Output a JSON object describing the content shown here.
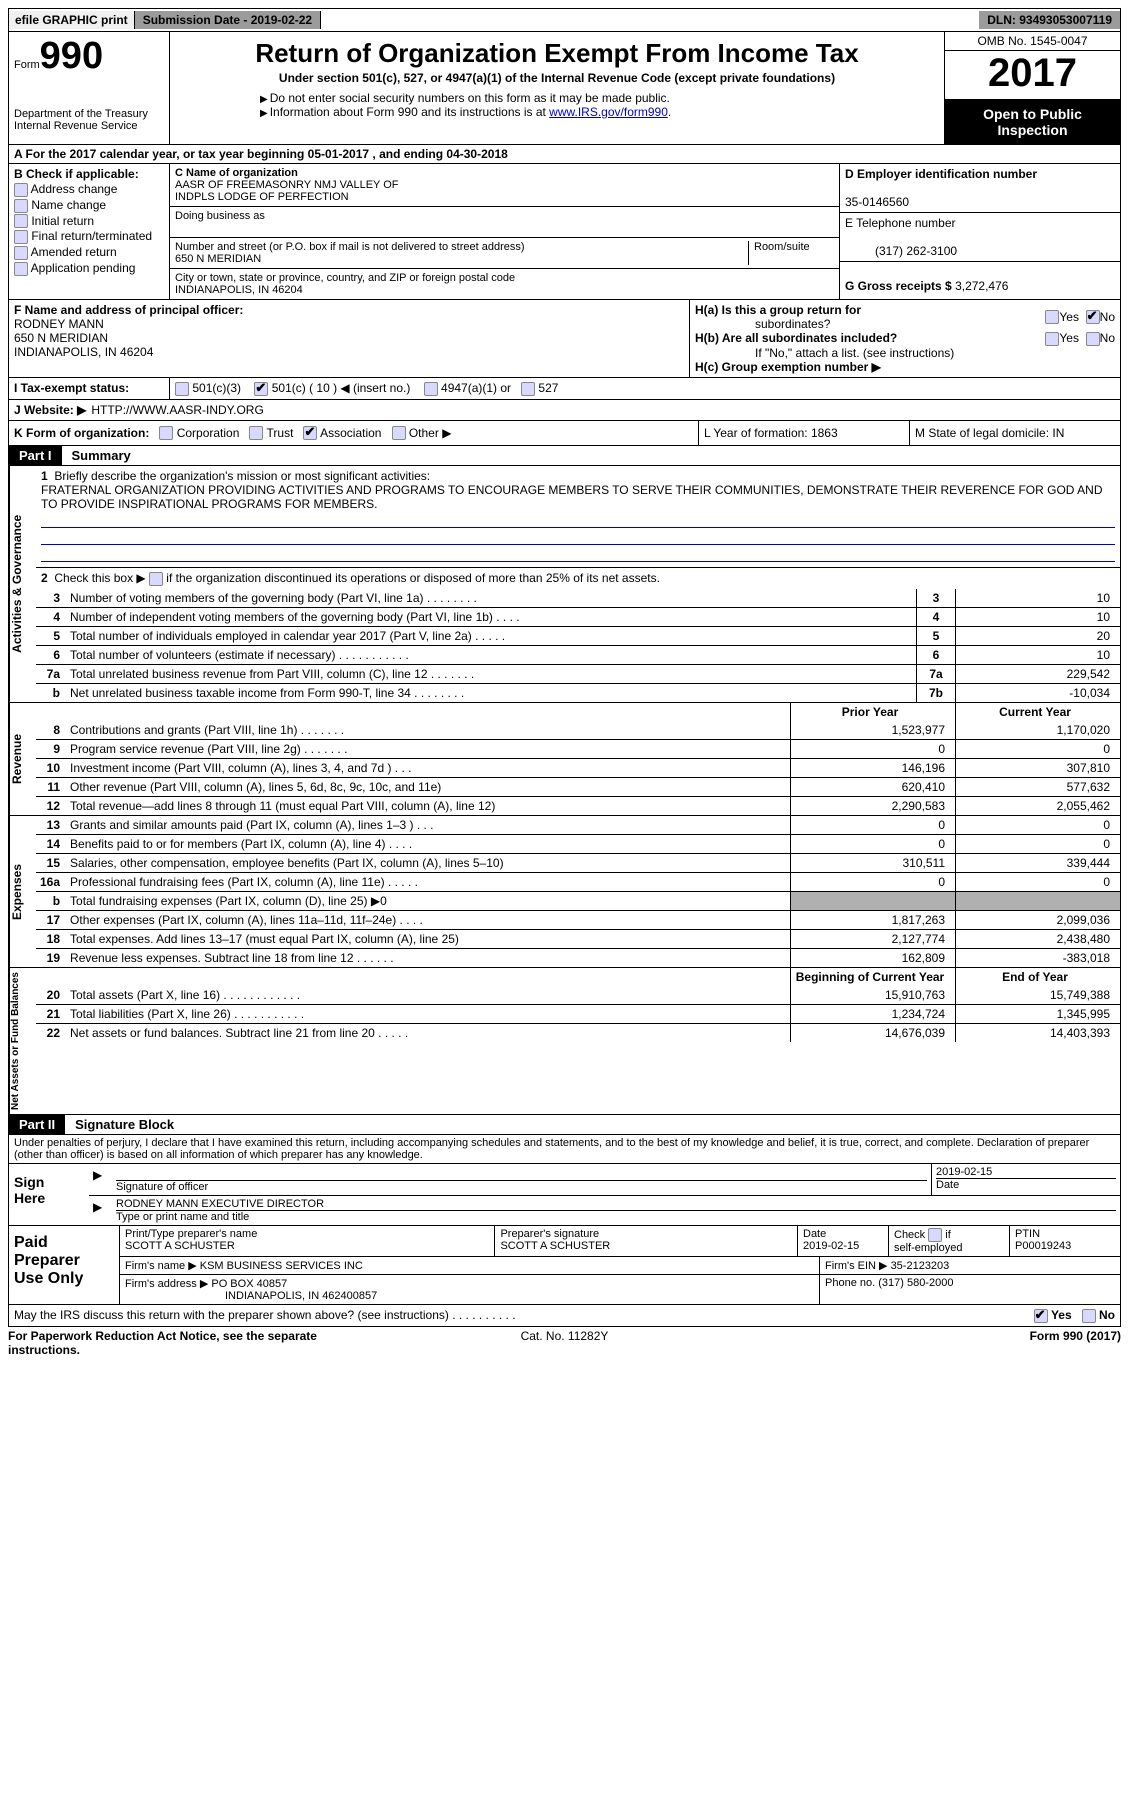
{
  "topbar": {
    "efile": "efile GRAPHIC print",
    "subdate_label": "Submission Date - ",
    "subdate": "2019-02-22",
    "dln_label": "DLN: ",
    "dln": "93493053007119"
  },
  "header": {
    "form_word": "Form",
    "form_num": "990",
    "dept1": "Department of the Treasury",
    "dept2": "Internal Revenue Service",
    "title": "Return of Organization Exempt From Income Tax",
    "subtitle": "Under section 501(c), 527, or 4947(a)(1) of the Internal Revenue Code (except private foundations)",
    "note1": "Do not enter social security numbers on this form as it may be made public.",
    "note2_pre": "Information about Form 990 and its instructions is at ",
    "note2_link": "www.IRS.gov/form990",
    "omb": "OMB No. 1545-0047",
    "year": "2017",
    "open1": "Open to Public",
    "open2": "Inspection"
  },
  "rowA": {
    "text_pre": "A   For the 2017 calendar year, or tax year beginning ",
    "begin": "05-01-2017",
    "mid": "   , and ending ",
    "end": "04-30-2018"
  },
  "B": {
    "label": "B Check if applicable:",
    "opts": [
      "Address change",
      "Name change",
      "Initial return",
      "Final return/terminated",
      "Amended return",
      "Application pending"
    ]
  },
  "C": {
    "name_lbl": "C Name of organization",
    "name1": "AASR OF FREEMASONRY NMJ VALLEY OF",
    "name2": "INDPLS LODGE OF PERFECTION",
    "dba_lbl": "Doing business as",
    "addr_lbl": "Number and street (or P.O. box if mail is not delivered to street address)",
    "room_lbl": "Room/suite",
    "addr": "650 N MERIDIAN",
    "city_lbl": "City or town, state or province, country, and ZIP or foreign postal code",
    "city": "INDIANAPOLIS, IN  46204"
  },
  "D": {
    "ein_lbl": "D Employer identification number",
    "ein": "35-0146560",
    "phone_lbl": "E Telephone number",
    "phone": "(317) 262-3100",
    "gross_lbl": "G Gross receipts $ ",
    "gross": "3,272,476"
  },
  "F": {
    "lbl": "F Name and address of principal officer:",
    "name": "RODNEY MANN",
    "addr1": "650 N MERIDIAN",
    "addr2": "INDIANAPOLIS, IN  46204"
  },
  "H": {
    "a": "H(a)  Is this a group return for",
    "a2": "subordinates?",
    "b": "H(b)  Are all subordinates included?",
    "b2": "If \"No,\" attach a list. (see instructions)",
    "c": "H(c)  Group exemption number ▶",
    "yes": "Yes",
    "no": "No"
  },
  "I": {
    "lbl": "I   Tax-exempt status:",
    "c3": "501(c)(3)",
    "c": "501(c) ( 10 ) ◀ (insert no.)",
    "a1": "4947(a)(1) or",
    "s527": "527"
  },
  "J": {
    "lbl": "J   Website: ▶",
    "val": "HTTP://WWW.AASR-INDY.ORG"
  },
  "K": {
    "lbl": "K Form of organization:",
    "corp": "Corporation",
    "trust": "Trust",
    "assoc": "Association",
    "other": "Other ▶",
    "L": "L Year of formation: 1863",
    "M": "M State of legal domicile: IN"
  },
  "part1": {
    "num": "Part I",
    "title": "Summary"
  },
  "vlabels": {
    "gov": "Activities & Governance",
    "rev": "Revenue",
    "exp": "Expenses",
    "net": "Net Assets or\nFund Balances"
  },
  "summary": {
    "l1": "Briefly describe the organization's mission or most significant activities:",
    "mission": "FRATERNAL ORGANIZATION PROVIDING ACTIVITIES AND PROGRAMS TO ENCOURAGE MEMBERS TO SERVE THEIR COMMUNITIES, DEMONSTRATE THEIR REVERENCE FOR GOD AND TO PROVIDE INSPIRATIONAL PROGRAMS FOR MEMBERS.",
    "l2": "Check this box ▶         if the organization discontinued its operations or disposed of more than 25% of its net assets.",
    "lines": [
      {
        "n": "3",
        "t": "Number of voting members of the governing body (Part VI, line 1a)  .    .    .    .    .    .    .    .",
        "b": "3",
        "v": "10"
      },
      {
        "n": "4",
        "t": "Number of independent voting members of the governing body (Part VI, line 1b)  .    .    .    .",
        "b": "4",
        "v": "10"
      },
      {
        "n": "5",
        "t": "Total number of individuals employed in calendar year 2017 (Part V, line 2a)  .    .    .    .    .",
        "b": "5",
        "v": "20"
      },
      {
        "n": "6",
        "t": "Total number of volunteers (estimate if necessary)  .    .    .    .    .    .    .    .    .    .    .",
        "b": "6",
        "v": "10"
      },
      {
        "n": "7a",
        "t": "Total unrelated business revenue from Part VIII, column (C), line 12  .    .    .    .    .    .    .",
        "b": "7a",
        "v": "229,542"
      },
      {
        "n": "b",
        "t": "Net unrelated business taxable income from Form 990-T, line 34  .    .    .    .    .    .    .    .",
        "b": "7b",
        "v": "-10,034"
      }
    ],
    "col_prior": "Prior Year",
    "col_curr": "Current Year",
    "rev": [
      {
        "n": "8",
        "t": "Contributions and grants (Part VIII, line 1h)  .    .    .    .    .    .    .",
        "p": "1,523,977",
        "c": "1,170,020"
      },
      {
        "n": "9",
        "t": "Program service revenue (Part VIII, line 2g)  .    .    .    .    .    .    .",
        "p": "0",
        "c": "0"
      },
      {
        "n": "10",
        "t": "Investment income (Part VIII, column (A), lines 3, 4, and 7d )  .    .    .",
        "p": "146,196",
        "c": "307,810"
      },
      {
        "n": "11",
        "t": "Other revenue (Part VIII, column (A), lines 5, 6d, 8c, 9c, 10c, and 11e)",
        "p": "620,410",
        "c": "577,632"
      },
      {
        "n": "12",
        "t": "Total revenue—add lines 8 through 11 (must equal Part VIII, column (A), line 12)",
        "p": "2,290,583",
        "c": "2,055,462"
      }
    ],
    "exp": [
      {
        "n": "13",
        "t": "Grants and similar amounts paid (Part IX, column (A), lines 1–3 )  .    .    .",
        "p": "0",
        "c": "0"
      },
      {
        "n": "14",
        "t": "Benefits paid to or for members (Part IX, column (A), line 4)  .    .    .    .",
        "p": "0",
        "c": "0"
      },
      {
        "n": "15",
        "t": "Salaries, other compensation, employee benefits (Part IX, column (A), lines 5–10)",
        "p": "310,511",
        "c": "339,444"
      },
      {
        "n": "16a",
        "t": "Professional fundraising fees (Part IX, column (A), line 11e)  .    .    .    .    .",
        "p": "0",
        "c": "0"
      },
      {
        "n": "b",
        "t": "Total fundraising expenses (Part IX, column (D), line 25) ▶0",
        "p": "",
        "c": "",
        "shade": true
      },
      {
        "n": "17",
        "t": "Other expenses (Part IX, column (A), lines 11a–11d, 11f–24e)  .    .    .    .",
        "p": "1,817,263",
        "c": "2,099,036"
      },
      {
        "n": "18",
        "t": "Total expenses. Add lines 13–17 (must equal Part IX, column (A), line 25)",
        "p": "2,127,774",
        "c": "2,438,480"
      },
      {
        "n": "19",
        "t": "Revenue less expenses. Subtract line 18 from line 12  .    .    .    .    .    .",
        "p": "162,809",
        "c": "-383,018"
      }
    ],
    "col_begin": "Beginning of Current Year",
    "col_end": "End of Year",
    "net": [
      {
        "n": "20",
        "t": "Total assets (Part X, line 16)  .    .    .    .    .    .    .    .    .    .    .    .",
        "p": "15,910,763",
        "c": "15,749,388"
      },
      {
        "n": "21",
        "t": "Total liabilities (Part X, line 26)  .    .    .    .    .    .    .    .    .    .    .",
        "p": "1,234,724",
        "c": "1,345,995"
      },
      {
        "n": "22",
        "t": "Net assets or fund balances. Subtract line 21 from line 20  .    .    .    .    .",
        "p": "14,676,039",
        "c": "14,403,393"
      }
    ]
  },
  "part2": {
    "num": "Part II",
    "title": "Signature Block"
  },
  "declaration": "Under penalties of perjury, I declare that I have examined this return, including accompanying schedules and statements, and to the best of my knowledge and belief, it is true, correct, and complete. Declaration of preparer (other than officer) is based on all information of which preparer has any knowledge.",
  "sign": {
    "here": "Sign Here",
    "sig_lbl": "Signature of officer",
    "date_lbl": "Date",
    "date": "2019-02-15",
    "name": "RODNEY MANN  EXECUTIVE DIRECTOR",
    "name_lbl": "Type or print name and title"
  },
  "preparer": {
    "title": "Paid Preparer Use Only",
    "name_lbl": "Print/Type preparer's name",
    "name": "SCOTT A SCHUSTER",
    "sig_lbl": "Preparer's signature",
    "sig": "SCOTT A SCHUSTER",
    "date_lbl": "Date",
    "date": "2019-02-15",
    "check_lbl": "Check         if self-employed",
    "ptin_lbl": "PTIN",
    "ptin": "P00019243",
    "firm_lbl": "Firm's name      ▶",
    "firm": "KSM BUSINESS SERVICES INC",
    "ein_lbl": "Firm's EIN ▶",
    "ein": "35-2123203",
    "addr_lbl": "Firm's address ▶",
    "addr1": "PO BOX 40857",
    "addr2": "INDIANAPOLIS, IN  462400857",
    "phone_lbl": "Phone no.",
    "phone": "(317) 580-2000"
  },
  "discuss": {
    "text": "May the IRS discuss this return with the preparer shown above? (see instructions)  .    .    .    .    .    .    .    .    .    .",
    "yes": "Yes",
    "no": "No"
  },
  "footer": {
    "left": "For Paperwork Reduction Act Notice, see the separate instructions.",
    "center": "Cat. No. 11282Y",
    "right_pre": "Form ",
    "right_form": "990",
    "right_post": " (2017)"
  }
}
